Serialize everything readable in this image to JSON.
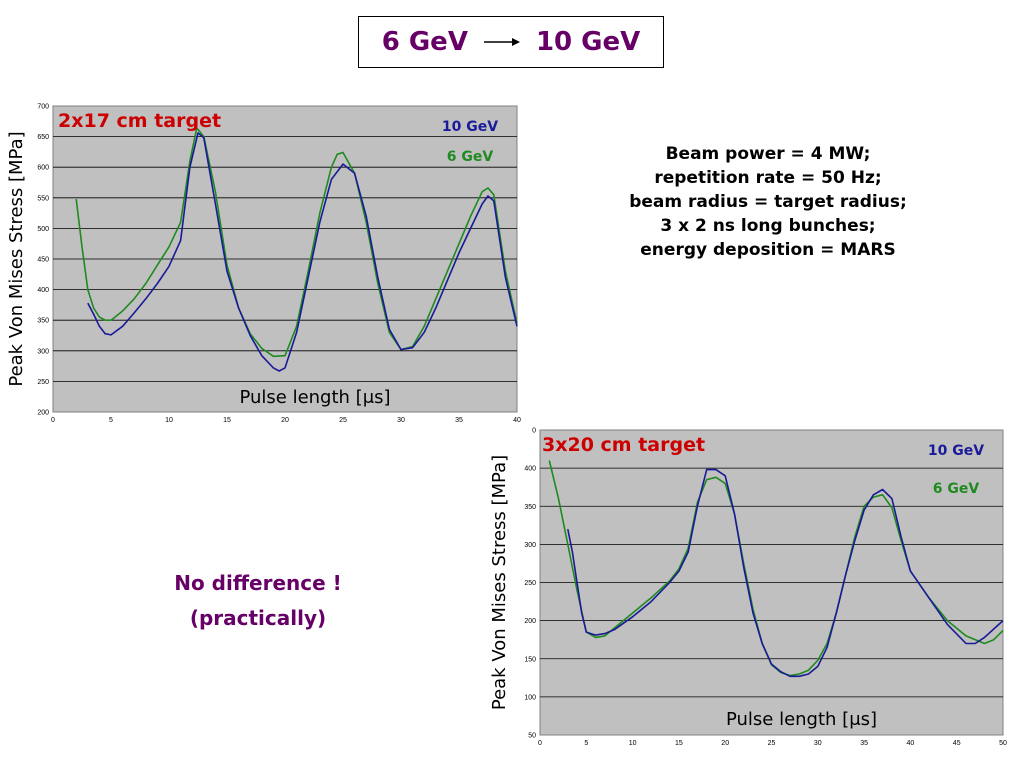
{
  "header": {
    "from": "6 GeV",
    "to": "10 GeV"
  },
  "info": {
    "lines": [
      "Beam power = 4 MW;",
      "repetition rate = 50 Hz;",
      "beam radius = target radius;",
      "3 x 2 ns long bunches;",
      "energy deposition = MARS"
    ]
  },
  "conclusion": {
    "line1": "No difference !",
    "line2": "(practically)"
  },
  "colors": {
    "gev10": "#1a1a99",
    "gev6": "#1f8a1f",
    "plot_bg": "#c0c0c0",
    "title_red": "#cc0000",
    "purple": "#660066"
  },
  "chart_data": [
    {
      "type": "line",
      "title": "2x17 cm target",
      "xlabel": "Pulse length [μs]",
      "ylabel": "Peak Von Mises Stress [MPa]",
      "xlim": [
        0,
        40
      ],
      "ylim": [
        200,
        700
      ],
      "xticks": [
        0,
        5,
        10,
        15,
        20,
        25,
        30,
        35,
        40
      ],
      "yticks": [
        200,
        250,
        300,
        350,
        400,
        450,
        500,
        550,
        600,
        650,
        700
      ],
      "grid": true,
      "legend": "top-right",
      "series": [
        {
          "name": "10 GeV",
          "color": "#1a1a99",
          "x": [
            3,
            3.5,
            4,
            4.5,
            5,
            6,
            7,
            8,
            9,
            10,
            11,
            11.8,
            12.5,
            13,
            14,
            15,
            16,
            17,
            18,
            19,
            19.5,
            20,
            21,
            22,
            23,
            24,
            25,
            26,
            27,
            28,
            29,
            30,
            31,
            32,
            33,
            34,
            35,
            36,
            37,
            37.5,
            38,
            39,
            40
          ],
          "y": [
            378,
            360,
            340,
            328,
            326,
            340,
            362,
            385,
            410,
            438,
            480,
            600,
            656,
            648,
            540,
            430,
            370,
            325,
            292,
            272,
            267,
            272,
            330,
            420,
            510,
            580,
            605,
            590,
            520,
            420,
            335,
            302,
            305,
            330,
            370,
            415,
            460,
            500,
            540,
            553,
            545,
            420,
            340
          ]
        },
        {
          "name": "6 GeV",
          "color": "#1f8a1f",
          "x": [
            2,
            2.5,
            3,
            3.5,
            4,
            4.5,
            5,
            6,
            7,
            8,
            9,
            10,
            11,
            11.8,
            12.4,
            13,
            14,
            15,
            16,
            17,
            18,
            19,
            20,
            21,
            22,
            23,
            24,
            24.5,
            25,
            26,
            27,
            28,
            29,
            30,
            31,
            32,
            33,
            34,
            35,
            36,
            37,
            37.5,
            38,
            39,
            40
          ],
          "y": [
            548,
            470,
            400,
            370,
            355,
            350,
            350,
            365,
            385,
            410,
            440,
            470,
            510,
            610,
            664,
            650,
            560,
            440,
            370,
            328,
            304,
            291,
            292,
            340,
            430,
            525,
            600,
            621,
            624,
            590,
            510,
            410,
            330,
            302,
            307,
            340,
            385,
            430,
            475,
            520,
            560,
            566,
            555,
            430,
            345
          ]
        }
      ]
    },
    {
      "type": "line",
      "title": "3x20 cm target",
      "xlabel": "Pulse length [μs]",
      "ylabel": "Peak Von Mises Stress [MPa]",
      "xlim": [
        0,
        50
      ],
      "ylim": [
        50,
        450
      ],
      "xticks": [
        0,
        5,
        10,
        15,
        20,
        25,
        30,
        35,
        40,
        45,
        50
      ],
      "yticks": [
        50,
        100,
        150,
        200,
        250,
        300,
        350,
        400
      ],
      "top_tick_label": "0",
      "grid": true,
      "legend": "top-right",
      "series": [
        {
          "name": "10 GeV",
          "color": "#1a1a99",
          "x": [
            3,
            3.5,
            4,
            4.5,
            5,
            6,
            7,
            8,
            10,
            12,
            14,
            15,
            16,
            17,
            18,
            19,
            20,
            21,
            22,
            23,
            24,
            25,
            26,
            27,
            28,
            29,
            30,
            31,
            32,
            33,
            34,
            35,
            36,
            37,
            38,
            39,
            40,
            42,
            44,
            46,
            47,
            48,
            50
          ],
          "y": [
            320,
            290,
            250,
            210,
            185,
            181,
            183,
            188,
            205,
            225,
            250,
            265,
            290,
            350,
            398,
            398,
            390,
            340,
            270,
            210,
            170,
            143,
            133,
            127,
            127,
            130,
            140,
            165,
            210,
            260,
            305,
            345,
            365,
            372,
            360,
            310,
            265,
            230,
            195,
            170,
            170,
            178,
            200
          ]
        },
        {
          "name": "6 GeV",
          "color": "#1f8a1f",
          "x": [
            1,
            2,
            3,
            4,
            5,
            6,
            7,
            8,
            10,
            12,
            14,
            15,
            16,
            17,
            18,
            19,
            20,
            21,
            22,
            23,
            24,
            25,
            26,
            27,
            28,
            29,
            30,
            31,
            32,
            33,
            34,
            35,
            36,
            37,
            38,
            39,
            40,
            42,
            44,
            46,
            48,
            49,
            50
          ],
          "y": [
            410,
            360,
            300,
            240,
            185,
            178,
            180,
            190,
            210,
            230,
            252,
            268,
            295,
            355,
            385,
            388,
            380,
            340,
            275,
            215,
            170,
            142,
            132,
            128,
            130,
            135,
            148,
            170,
            210,
            260,
            310,
            350,
            362,
            365,
            348,
            305,
            265,
            230,
            200,
            180,
            170,
            175,
            187
          ]
        }
      ]
    }
  ]
}
